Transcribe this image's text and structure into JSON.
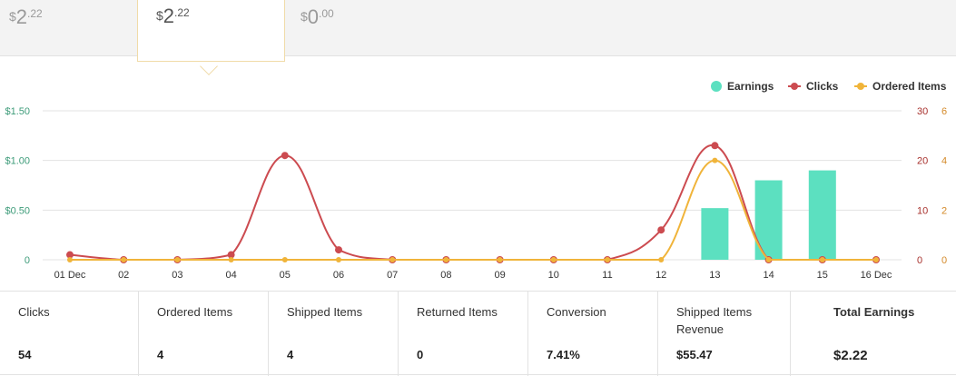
{
  "tabs": [
    {
      "currency": "$",
      "integer": "2",
      "decimal": ".22"
    },
    {
      "currency": "$",
      "integer": "2",
      "decimal": ".22"
    },
    {
      "currency": "$",
      "integer": "0",
      "decimal": ".00"
    }
  ],
  "legend": {
    "earnings": "Earnings",
    "clicks": "Clicks",
    "ordered": "Ordered Items"
  },
  "colors": {
    "earnings": "#5ce0c0",
    "clicks": "#cc4b50",
    "ordered": "#f0b43a",
    "left_axis": "#3e9c7a",
    "mid_axis": "#a8322e",
    "right_axis": "#d48a2a",
    "grid": "#e3e3e3"
  },
  "chart_data": {
    "type": "bar",
    "categories": [
      "01 Dec",
      "02",
      "03",
      "04",
      "05",
      "06",
      "07",
      "08",
      "09",
      "10",
      "11",
      "12",
      "13",
      "14",
      "15",
      "16 Dec"
    ],
    "series": [
      {
        "name": "Earnings",
        "type": "bar",
        "axis": "left",
        "values": [
          0,
          0,
          0,
          0,
          0,
          0,
          0,
          0,
          0,
          0,
          0,
          0,
          0.52,
          0.8,
          0.9,
          0
        ]
      },
      {
        "name": "Clicks",
        "type": "line",
        "axis": "mid",
        "values": [
          1,
          0,
          0,
          1,
          21,
          2,
          0,
          0,
          0,
          0,
          0,
          6,
          23,
          0,
          0,
          0
        ]
      },
      {
        "name": "Ordered Items",
        "type": "line",
        "axis": "right",
        "values": [
          0,
          0,
          0,
          0,
          0,
          0,
          0,
          0,
          0,
          0,
          0,
          0,
          4,
          0,
          0,
          0
        ]
      }
    ],
    "y_left": {
      "ticks": [
        "0",
        "$0.50",
        "$1.00",
        "$1.50"
      ],
      "range": [
        0,
        1.5
      ]
    },
    "y_mid": {
      "ticks": [
        "0",
        "10",
        "20",
        "30"
      ],
      "range": [
        0,
        30
      ]
    },
    "y_right": {
      "ticks": [
        "0",
        "2",
        "4",
        "6"
      ],
      "range": [
        0,
        6
      ]
    },
    "grid": true,
    "legend_position": "top-right"
  },
  "stats": [
    {
      "label": "Clicks",
      "value": "54"
    },
    {
      "label": "Ordered Items",
      "value": "4"
    },
    {
      "label": "Shipped Items",
      "value": "4"
    },
    {
      "label": "Returned Items",
      "value": "0"
    },
    {
      "label": "Conversion",
      "value": "7.41%"
    },
    {
      "label": "Shipped Items Revenue",
      "value": "$55.47"
    },
    {
      "label": "Total Earnings",
      "value": "$2.22"
    }
  ]
}
